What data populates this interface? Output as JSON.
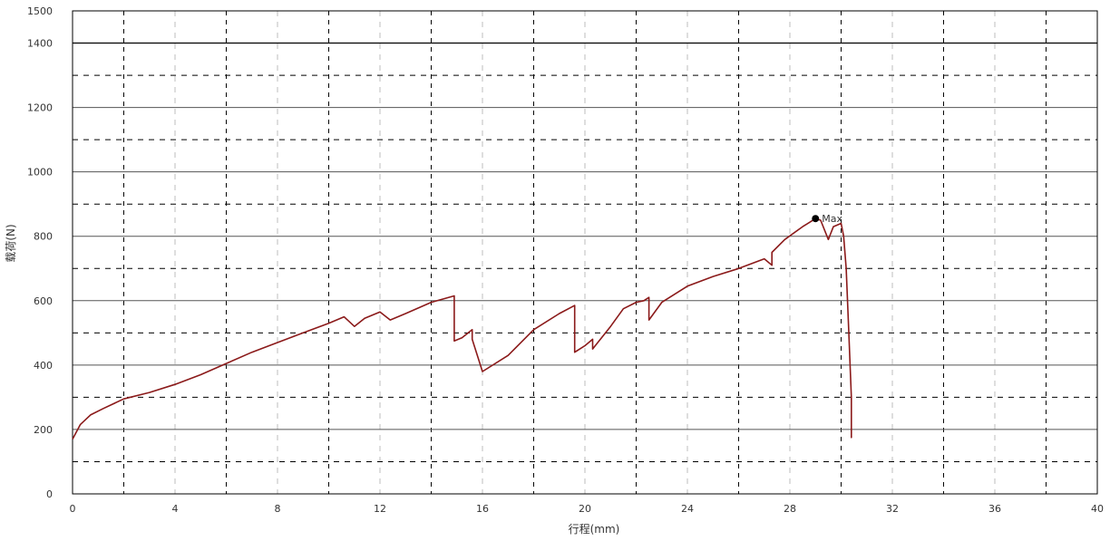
{
  "chart_data": {
    "type": "line",
    "title": "",
    "xlabel": "行程(mm)",
    "ylabel": "载荷(N)",
    "xlim": [
      0,
      40
    ],
    "ylim": [
      0,
      1500
    ],
    "x_ticks": [
      "0",
      "4",
      "8",
      "12",
      "16",
      "20",
      "24",
      "28",
      "32",
      "36",
      "40"
    ],
    "y_ticks": [
      "0",
      "200",
      "400",
      "600",
      "800",
      "1000",
      "1200",
      "1400",
      "1500"
    ],
    "grid": true,
    "series": [
      {
        "color": "#8b1a1a",
        "x": [
          0,
          0.3,
          0.7,
          1.2,
          2.0,
          3.0,
          4.0,
          5.0,
          6.0,
          7.0,
          8.0,
          9.0,
          10.0,
          10.6,
          11.0,
          11.4,
          12.0,
          12.4,
          13.0,
          14.0,
          14.9,
          14.9,
          15.2,
          15.6,
          15.6,
          16.0,
          17.0,
          18.0,
          19.0,
          19.6,
          19.6,
          20.0,
          20.3,
          20.3,
          21.0,
          21.5,
          22.0,
          22.3,
          22.5,
          22.5,
          23.0,
          24.0,
          25.0,
          26.0,
          27.0,
          27.3,
          27.3,
          27.8,
          28.5,
          29.0,
          29.2,
          29.5,
          29.7,
          30.0,
          30.1,
          30.2,
          30.3,
          30.4,
          30.4,
          30.4
        ],
        "y": [
          170,
          215,
          245,
          265,
          295,
          315,
          340,
          370,
          405,
          440,
          470,
          500,
          530,
          550,
          520,
          545,
          565,
          540,
          560,
          595,
          615,
          475,
          485,
          510,
          480,
          380,
          430,
          510,
          560,
          585,
          440,
          460,
          480,
          450,
          520,
          575,
          595,
          600,
          610,
          540,
          595,
          645,
          675,
          700,
          730,
          710,
          750,
          790,
          830,
          855,
          850,
          790,
          830,
          840,
          800,
          700,
          500,
          300,
          175,
          185
        ]
      }
    ],
    "annotations": [
      {
        "label": "Max",
        "x": 29.0,
        "y": 855
      }
    ]
  }
}
